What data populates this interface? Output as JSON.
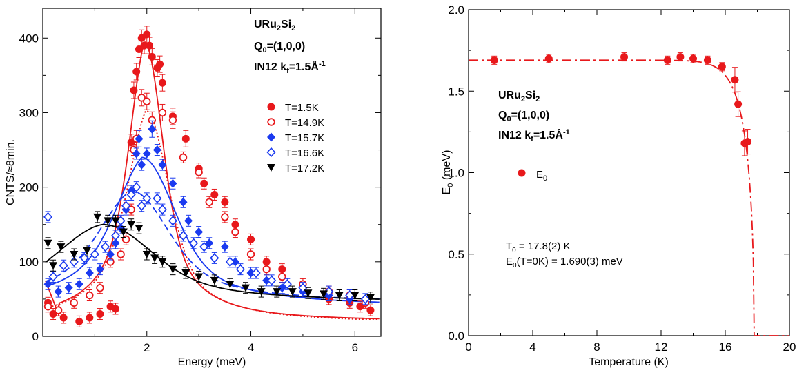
{
  "colors": {
    "red": "#e8181b",
    "blue": "#1a3af0",
    "black": "#000000"
  },
  "chart_data": [
    {
      "type": "scatter",
      "xlabel": "Energy (meV)",
      "ylabel": "CNTS/≈8min.",
      "xlim": [
        0,
        6.5
      ],
      "ylim": [
        0,
        440
      ],
      "xticks": [
        2,
        4,
        6
      ],
      "yticks": [
        0,
        100,
        200,
        300,
        400
      ],
      "annotations": [
        "URu",
        "2",
        "Si",
        "2",
        "Q",
        "0",
        "=(1,0,0)",
        "IN12 k",
        "f",
        "=1.5Å",
        "-1"
      ],
      "legend_position": "center-right",
      "series": [
        {
          "name": "T=1.5K",
          "marker": "filled-circle",
          "color": "#e8181b",
          "x": [
            0.1,
            0.2,
            0.4,
            0.7,
            0.9,
            1.1,
            1.3,
            1.4,
            1.6,
            1.7,
            1.75,
            1.8,
            1.85,
            1.9,
            1.95,
            2.0,
            2.05,
            2.1,
            2.2,
            2.25,
            2.3,
            2.5,
            2.75,
            3.0,
            3.1,
            3.3,
            3.5,
            3.7,
            4.0,
            4.3,
            4.6,
            5.0,
            5.5,
            5.9,
            6.1,
            6.3
          ],
          "y": [
            45,
            30,
            25,
            20,
            25,
            30,
            40,
            37,
            130,
            260,
            330,
            355,
            385,
            400,
            390,
            405,
            390,
            375,
            360,
            365,
            340,
            295,
            265,
            225,
            205,
            190,
            180,
            150,
            130,
            100,
            90,
            70,
            50,
            45,
            40,
            35
          ]
        },
        {
          "name": "T=14.9K",
          "marker": "open-circle",
          "color": "#e8181b",
          "x": [
            0.1,
            0.3,
            0.6,
            0.9,
            1.1,
            1.3,
            1.5,
            1.6,
            1.7,
            1.75,
            1.8,
            1.9,
            2.0,
            2.1,
            2.3,
            2.5,
            2.7,
            3.0,
            3.2,
            3.5,
            3.7,
            4.0,
            4.3,
            4.6,
            5.0,
            5.5,
            5.9,
            6.2
          ],
          "y": [
            40,
            35,
            45,
            55,
            65,
            100,
            110,
            130,
            170,
            250,
            265,
            320,
            315,
            290,
            300,
            290,
            240,
            220,
            180,
            160,
            140,
            110,
            90,
            80,
            70,
            60,
            55,
            45
          ]
        },
        {
          "name": "T=15.7K",
          "marker": "filled-diamond",
          "color": "#1a3af0",
          "x": [
            0.1,
            0.3,
            0.5,
            0.7,
            0.9,
            1.1,
            1.3,
            1.4,
            1.5,
            1.6,
            1.7,
            1.8,
            1.85,
            1.9,
            2.0,
            2.1,
            2.2,
            2.3,
            2.5,
            2.7,
            2.8,
            3.0,
            3.2,
            3.5,
            3.7,
            4.0,
            4.3,
            4.6,
            5.0,
            5.5,
            5.9,
            6.2
          ],
          "y": [
            70,
            60,
            65,
            70,
            85,
            90,
            110,
            125,
            145,
            170,
            195,
            245,
            265,
            230,
            245,
            278,
            250,
            230,
            205,
            180,
            155,
            140,
            125,
            120,
            100,
            85,
            75,
            65,
            60,
            55,
            50,
            50
          ]
        },
        {
          "name": "T=16.6K",
          "marker": "open-diamond",
          "color": "#1a3af0",
          "x": [
            0.1,
            0.2,
            0.4,
            0.6,
            0.8,
            1.0,
            1.2,
            1.4,
            1.5,
            1.6,
            1.7,
            1.8,
            1.9,
            2.0,
            2.2,
            2.3,
            2.5,
            2.7,
            2.9,
            3.1,
            3.3,
            3.6,
            3.8,
            4.1,
            4.4,
            4.7,
            5.0,
            5.5,
            5.9,
            6.2
          ],
          "y": [
            160,
            80,
            95,
            100,
            105,
            110,
            120,
            135,
            155,
            175,
            190,
            200,
            175,
            185,
            185,
            170,
            155,
            135,
            125,
            120,
            105,
            100,
            90,
            85,
            75,
            70,
            65,
            60,
            55,
            50
          ]
        },
        {
          "name": "T=17.2K",
          "marker": "filled-triangle-down",
          "color": "#000000",
          "x": [
            0.1,
            0.2,
            0.35,
            0.6,
            0.85,
            1.05,
            1.25,
            1.4,
            1.55,
            1.7,
            1.85,
            2.0,
            2.15,
            2.3,
            2.5,
            2.75,
            3.0,
            3.3,
            3.6,
            3.9,
            4.2,
            4.5,
            4.8,
            5.1,
            5.4,
            5.7,
            6.0,
            6.3
          ],
          "y": [
            125,
            95,
            120,
            110,
            115,
            160,
            155,
            155,
            140,
            150,
            145,
            110,
            105,
            100,
            90,
            85,
            80,
            75,
            70,
            65,
            60,
            60,
            60,
            58,
            57,
            55,
            55,
            52
          ]
        }
      ],
      "fits": [
        {
          "series": "T=1.5K",
          "style": "solid",
          "color": "#e8181b"
        },
        {
          "series": "T=14.9K",
          "style": "dotted",
          "color": "#e8181b"
        },
        {
          "series": "T=15.7K",
          "style": "solid",
          "color": "#1a3af0"
        },
        {
          "series": "T=16.6K",
          "style": "dashed",
          "color": "#1a3af0"
        },
        {
          "series": "T=17.2K",
          "style": "solid",
          "color": "#000000"
        }
      ]
    },
    {
      "type": "scatter",
      "xlabel": "Temperature (K)",
      "ylabel": "E0 (meV)",
      "xlim": [
        0,
        20
      ],
      "ylim": [
        0,
        2.0
      ],
      "xticks": [
        0,
        4,
        8,
        12,
        16,
        20
      ],
      "yticks": [
        0.0,
        0.5,
        1.0,
        1.5,
        2.0
      ],
      "annotations": [
        "URu",
        "2",
        "Si",
        "2",
        "Q",
        "0",
        "=(1,0,0)",
        "IN12 k",
        "f",
        "=1.5Å",
        "-1",
        "T",
        "0",
        " = 17.8(2) K",
        "E",
        "0",
        "(T=0K) = 1.690(3) meV"
      ],
      "legend_position": "center-left",
      "series": [
        {
          "name": "E0",
          "marker": "filled-circle",
          "color": "#e8181b",
          "x": [
            1.6,
            5.0,
            9.7,
            12.4,
            13.2,
            14.0,
            14.9,
            15.8,
            16.6,
            16.8,
            17.2,
            17.4
          ],
          "y": [
            1.69,
            1.7,
            1.71,
            1.69,
            1.71,
            1.7,
            1.69,
            1.65,
            1.57,
            1.42,
            1.18,
            1.19
          ]
        }
      ],
      "fit": {
        "style": "dash-dot",
        "color": "#e8181b"
      }
    }
  ]
}
